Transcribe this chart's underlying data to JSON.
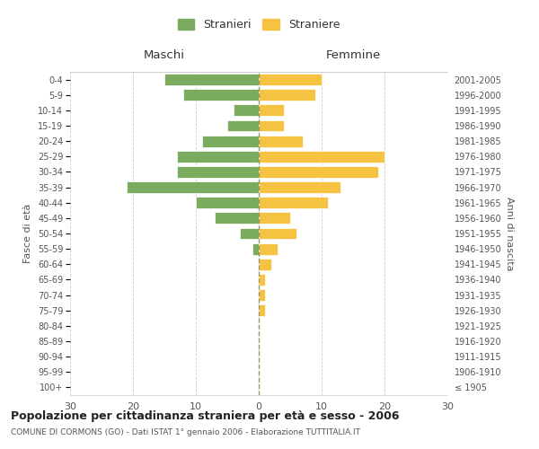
{
  "age_groups": [
    "100+",
    "95-99",
    "90-94",
    "85-89",
    "80-84",
    "75-79",
    "70-74",
    "65-69",
    "60-64",
    "55-59",
    "50-54",
    "45-49",
    "40-44",
    "35-39",
    "30-34",
    "25-29",
    "20-24",
    "15-19",
    "10-14",
    "5-9",
    "0-4"
  ],
  "birth_years": [
    "≤ 1905",
    "1906-1910",
    "1911-1915",
    "1916-1920",
    "1921-1925",
    "1926-1930",
    "1931-1935",
    "1936-1940",
    "1941-1945",
    "1946-1950",
    "1951-1955",
    "1956-1960",
    "1961-1965",
    "1966-1970",
    "1971-1975",
    "1976-1980",
    "1981-1985",
    "1986-1990",
    "1991-1995",
    "1996-2000",
    "2001-2005"
  ],
  "males": [
    0,
    0,
    0,
    0,
    0,
    0,
    0,
    0,
    0,
    1,
    3,
    7,
    10,
    21,
    13,
    13,
    9,
    5,
    4,
    12,
    15
  ],
  "females": [
    0,
    0,
    0,
    0,
    0,
    1,
    1,
    1,
    2,
    3,
    6,
    5,
    11,
    13,
    19,
    20,
    7,
    4,
    4,
    9,
    10
  ],
  "male_color": "#7aab5e",
  "female_color": "#f5c242",
  "background_color": "#ffffff",
  "grid_color": "#cccccc",
  "title": "Popolazione per cittadinanza straniera per età e sesso - 2006",
  "subtitle": "COMUNE DI CORMONS (GO) - Dati ISTAT 1° gennaio 2006 - Elaborazione TUTTITALIA.IT",
  "xlabel_left": "Maschi",
  "xlabel_right": "Femmine",
  "ylabel_left": "Fasce di età",
  "ylabel_right": "Anni di nascita",
  "legend_male": "Stranieri",
  "legend_female": "Straniere",
  "xlim": 30,
  "dashed_line_color": "#999966"
}
